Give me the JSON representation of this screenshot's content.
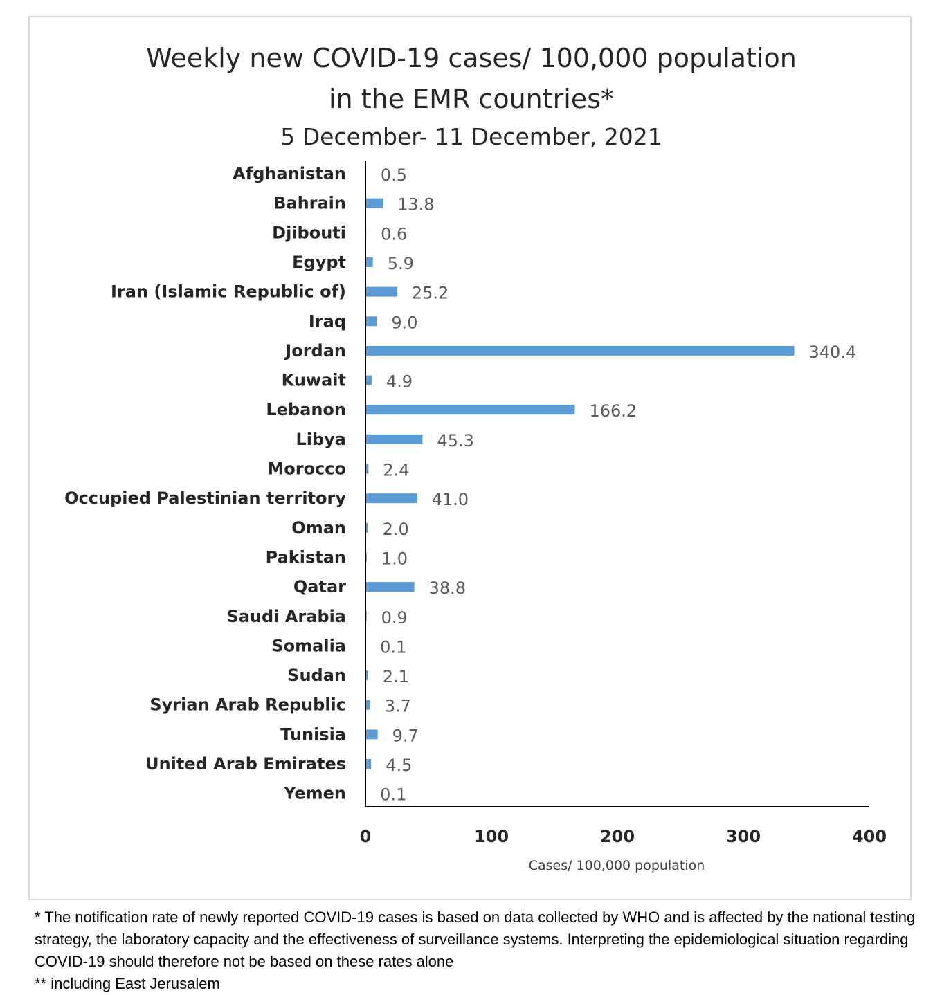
{
  "chart_data": {
    "type": "bar",
    "orientation": "horizontal",
    "title": "Weekly new COVID-19 cases/ 100,000 population",
    "title_line2": "in the EMR countries*",
    "subtitle": "5 December- 11 December, 2021",
    "xlabel": "Cases/ 100,000 population",
    "ylabel": "",
    "xlim": [
      0,
      400
    ],
    "xticks": [
      "0",
      "100",
      "200",
      "300",
      "400"
    ],
    "grid": false,
    "bar_color": "#5b9bd5",
    "categories": [
      "Afghanistan",
      "Bahrain",
      "Djibouti",
      "Egypt",
      "Iran (Islamic Republic of)",
      "Iraq",
      "Jordan",
      "Kuwait",
      "Lebanon",
      "Libya",
      "Morocco",
      "Occupied Palestinian territory",
      "Oman",
      "Pakistan",
      "Qatar",
      "Saudi Arabia",
      "Somalia",
      "Sudan",
      "Syrian Arab Republic",
      "Tunisia",
      "United Arab Emirates",
      "Yemen"
    ],
    "values": [
      0.5,
      13.8,
      0.6,
      5.9,
      25.2,
      9.0,
      340.4,
      4.9,
      166.2,
      45.3,
      2.4,
      41.0,
      2.0,
      1.0,
      38.8,
      0.9,
      0.1,
      2.1,
      3.7,
      9.7,
      4.5,
      0.1
    ],
    "value_labels": [
      "0.5",
      "13.8",
      "0.6",
      "5.9",
      "25.2",
      "9.0",
      "340.4",
      "4.9",
      "166.2",
      "45.3",
      "2.4",
      "41.0",
      "2.0",
      "1.0",
      "38.8",
      "0.9",
      "0.1",
      "2.1",
      "3.7",
      "9.7",
      "4.5",
      "0.1"
    ]
  },
  "footnotes": {
    "line1": "* The notification rate of newly reported COVID-19 cases is based on data collected by WHO and is affected by the national testing strategy, the laboratory capacity and the effectiveness of surveillance systems. Interpreting the epidemiological situation regarding COVID-19 should therefore not be based on these rates alone",
    "line2": "** including East Jerusalem"
  }
}
